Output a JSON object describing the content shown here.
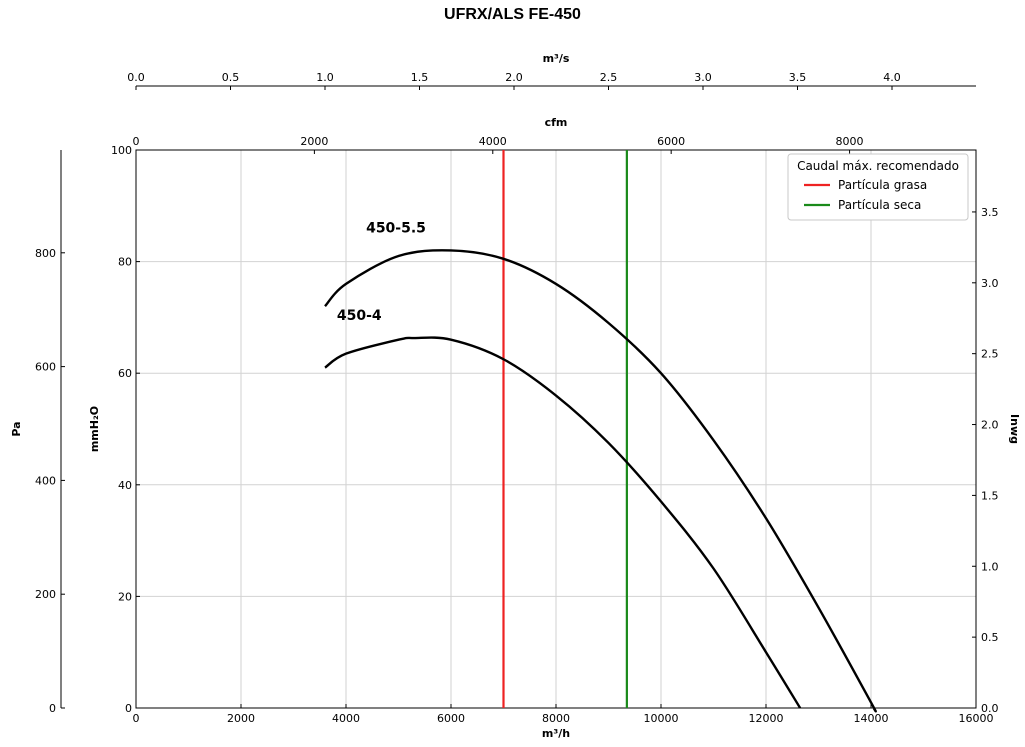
{
  "chart_data": {
    "type": "line",
    "title": "UFRX/ALS FE-450",
    "xlabel": "m³/h",
    "ylabel": "mmH₂O",
    "xlim": [
      0,
      16000
    ],
    "ylim": [
      0,
      100
    ],
    "x_ticks": [
      "0",
      "2000",
      "4000",
      "6000",
      "8000",
      "10000",
      "12000",
      "14000",
      "16000"
    ],
    "y_ticks": [
      "0",
      "20",
      "40",
      "60",
      "80",
      "100"
    ],
    "top_axis_ms": {
      "label": "m³/s",
      "ticks": [
        "0.0",
        "0.5",
        "1.0",
        "1.5",
        "2.0",
        "2.5",
        "3.0",
        "3.5",
        "4.0"
      ]
    },
    "top_axis_cfm": {
      "label": "cfm",
      "ticks": [
        "0",
        "2000",
        "4000",
        "6000",
        "8000"
      ]
    },
    "left_axis_pa": {
      "label": "Pa",
      "ticks": [
        "0",
        "200",
        "400",
        "600",
        "800"
      ]
    },
    "right_axis_inwg": {
      "label": "Inwg",
      "ticks": [
        "0.0",
        "0.5",
        "1.0",
        "1.5",
        "2.0",
        "2.5",
        "3.0",
        "3.5"
      ]
    },
    "series": [
      {
        "name": "450-5.5",
        "x": [
          3600,
          4000,
          5000,
          6000,
          7000,
          8000,
          9000,
          10000,
          11000,
          12000,
          13000,
          14000,
          14050
        ],
        "y": [
          72,
          76,
          81,
          82,
          80.5,
          76,
          69,
          60,
          48,
          34,
          18,
          1,
          0
        ]
      },
      {
        "name": "450-4",
        "x": [
          3600,
          4000,
          5000,
          5300,
          6000,
          7000,
          8000,
          9000,
          10000,
          11000,
          12000,
          12650
        ],
        "y": [
          61,
          63.5,
          66,
          66.3,
          66,
          62.5,
          56,
          47.5,
          37,
          25,
          10,
          0
        ]
      }
    ],
    "vlines": [
      {
        "name": "Partícula grasa",
        "x": 7000,
        "color": "#ee2222"
      },
      {
        "name": "Partícula seca",
        "x": 9350,
        "color": "#1a8a1a"
      }
    ],
    "legend": {
      "title": "Caudal máx. recomendado",
      "placement": "top-right"
    },
    "grid": true,
    "line_color": "#000000"
  }
}
